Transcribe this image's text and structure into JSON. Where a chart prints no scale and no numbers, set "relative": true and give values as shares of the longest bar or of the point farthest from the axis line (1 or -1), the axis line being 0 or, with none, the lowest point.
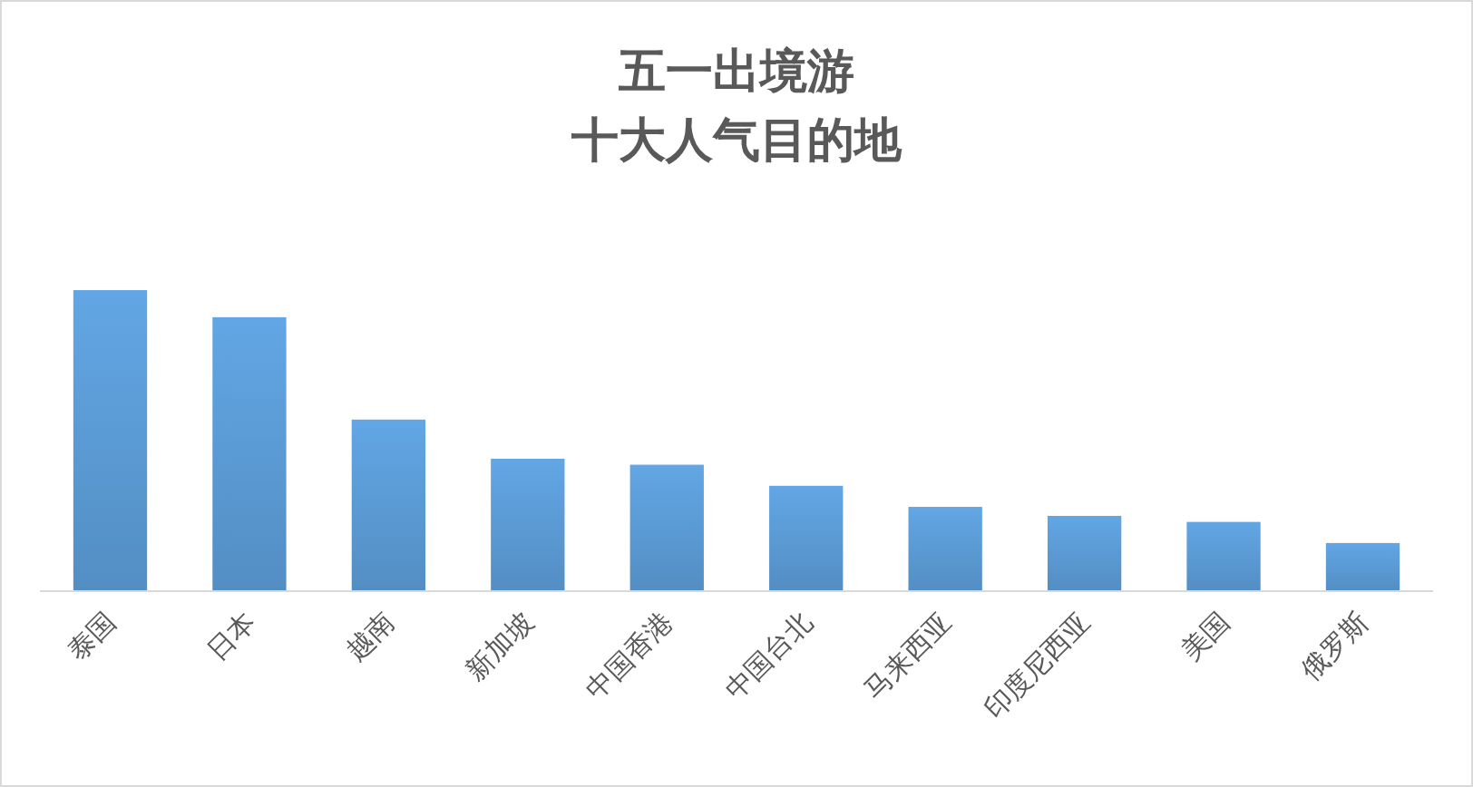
{
  "chart_data": {
    "type": "bar",
    "title": "五一出境游",
    "subtitle": "十大人气目的地",
    "relative": true,
    "color": "#5b9bd5",
    "categories": [
      "泰国",
      "日本",
      "越南",
      "新加坡",
      "中国香港",
      "中国台北",
      "马来西亚",
      "印度尼西亚",
      "美国",
      "俄罗斯"
    ],
    "values": [
      1,
      0.91,
      0.57,
      0.44,
      0.42,
      0.35,
      0.28,
      0.25,
      0.23,
      0.16
    ]
  }
}
